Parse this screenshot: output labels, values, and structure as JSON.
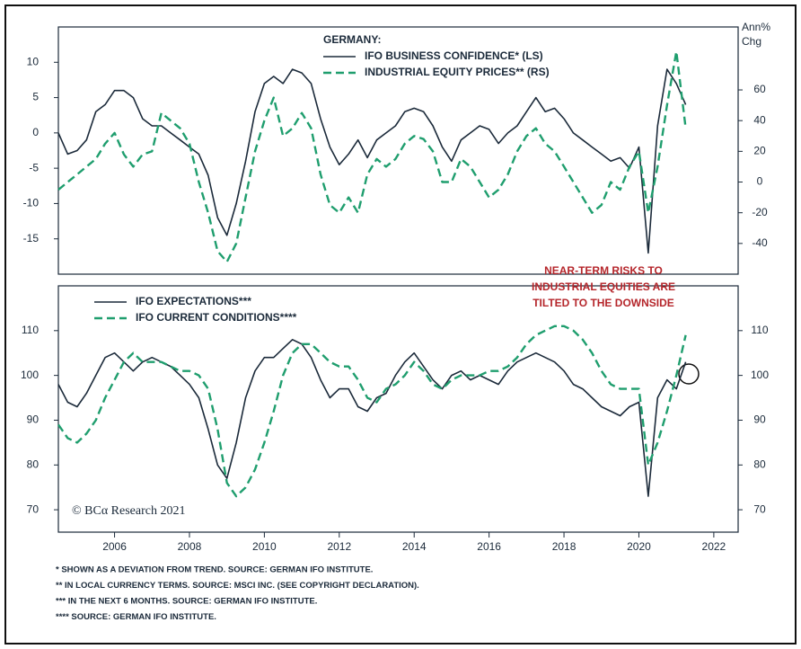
{
  "chart_data": [
    {
      "type": "line",
      "legend_title": "GERMANY:",
      "y2label": [
        "Ann%",
        "Chg"
      ],
      "xlim": [
        2004.5,
        2022.65
      ],
      "ylim": [
        -20,
        15
      ],
      "yticks": [
        -15,
        -10,
        -5,
        0,
        5,
        10
      ],
      "y2lim": [
        -60,
        101
      ],
      "y2ticks": [
        -40,
        -20,
        0,
        20,
        40,
        60
      ],
      "x": [
        2004.5,
        2004.75,
        2005,
        2005.25,
        2005.5,
        2005.75,
        2006,
        2006.25,
        2006.5,
        2006.75,
        2007,
        2007.25,
        2007.5,
        2007.75,
        2008,
        2008.25,
        2008.5,
        2008.75,
        2009,
        2009.25,
        2009.5,
        2009.75,
        2010,
        2010.25,
        2010.5,
        2010.75,
        2011,
        2011.25,
        2011.5,
        2011.75,
        2012,
        2012.25,
        2012.5,
        2012.75,
        2013,
        2013.25,
        2013.5,
        2013.75,
        2014,
        2014.25,
        2014.5,
        2014.75,
        2015,
        2015.25,
        2015.5,
        2015.75,
        2016,
        2016.25,
        2016.5,
        2016.75,
        2017,
        2017.25,
        2017.5,
        2017.75,
        2018,
        2018.25,
        2018.5,
        2018.75,
        2019,
        2019.25,
        2019.5,
        2019.75,
        2020,
        2020.25,
        2020.5,
        2020.75,
        2021,
        2021.25
      ],
      "series": [
        {
          "name": "IFO BUSINESS CONFIDENCE* (LS)",
          "color": "#1b2a3a",
          "dash": false,
          "axis": "y",
          "values": [
            0,
            -3,
            -2.5,
            -1,
            3,
            4,
            6,
            6,
            5,
            2,
            1,
            1,
            0,
            -1,
            -2,
            -3,
            -6,
            -12,
            -14.5,
            -10,
            -4,
            3,
            7,
            8,
            7,
            9,
            8.5,
            7,
            2,
            -2,
            -4.5,
            -3,
            -1,
            -3.5,
            -1,
            0,
            1,
            3,
            3.5,
            3,
            1,
            -2,
            -4,
            -1,
            0,
            1,
            0.5,
            -1.5,
            0,
            1,
            3,
            5,
            3,
            3.5,
            2,
            0,
            -1,
            -2,
            -3,
            -4,
            -3.5,
            -5,
            -2,
            -17,
            1,
            9,
            7,
            4
          ]
        },
        {
          "name": "INDUSTRIAL EQUITY PRICES** (RS)",
          "color": "#1f9e6e",
          "dash": true,
          "axis": "y2",
          "values": [
            -5,
            0,
            5,
            10,
            15,
            25,
            32,
            18,
            10,
            18,
            20,
            45,
            40,
            35,
            25,
            0,
            -20,
            -45,
            -52,
            -40,
            -10,
            20,
            40,
            55,
            30,
            35,
            45,
            35,
            5,
            -15,
            -20,
            -10,
            -20,
            5,
            15,
            10,
            15,
            25,
            30,
            28,
            20,
            0,
            0,
            15,
            10,
            0,
            -10,
            -5,
            5,
            20,
            30,
            35,
            25,
            20,
            10,
            0,
            -10,
            -20,
            -15,
            0,
            -5,
            10,
            20,
            -20,
            10,
            50,
            85,
            35
          ]
        }
      ]
    },
    {
      "type": "line",
      "annotation": [
        "NEAR-TERM RISKS TO",
        "INDUSTRIAL EQUITIES ARE",
        "TILTED TO THE DOWNSIDE"
      ],
      "annotation_color": "#b5262b",
      "source": "© BCα Research 2021",
      "xlim": [
        2004.5,
        2022.65
      ],
      "xticks": [
        2006,
        2008,
        2010,
        2012,
        2014,
        2016,
        2018,
        2020,
        2022
      ],
      "ylim": [
        65,
        120
      ],
      "yticks": [
        70,
        80,
        90,
        100,
        110
      ],
      "y2lim": [
        65,
        120
      ],
      "y2ticks": [
        70,
        80,
        90,
        100,
        110
      ],
      "x": [
        2004.5,
        2004.75,
        2005,
        2005.25,
        2005.5,
        2005.75,
        2006,
        2006.25,
        2006.5,
        2006.75,
        2007,
        2007.25,
        2007.5,
        2007.75,
        2008,
        2008.25,
        2008.5,
        2008.75,
        2009,
        2009.25,
        2009.5,
        2009.75,
        2010,
        2010.25,
        2010.5,
        2010.75,
        2011,
        2011.25,
        2011.5,
        2011.75,
        2012,
        2012.25,
        2012.5,
        2012.75,
        2013,
        2013.25,
        2013.5,
        2013.75,
        2014,
        2014.25,
        2014.5,
        2014.75,
        2015,
        2015.25,
        2015.5,
        2015.75,
        2016,
        2016.25,
        2016.5,
        2016.75,
        2017,
        2017.25,
        2017.5,
        2017.75,
        2018,
        2018.25,
        2018.5,
        2018.75,
        2019,
        2019.25,
        2019.5,
        2019.75,
        2020,
        2020.25,
        2020.5,
        2020.75,
        2021,
        2021.25
      ],
      "series": [
        {
          "name": "IFO EXPECTATIONS***",
          "color": "#1b2a3a",
          "dash": false,
          "axis": "y",
          "values": [
            98,
            94,
            93,
            96,
            100,
            104,
            105,
            103,
            101,
            103,
            104,
            103,
            102,
            100,
            98,
            95,
            88,
            80,
            77,
            85,
            95,
            101,
            104,
            104,
            106,
            108,
            107,
            104,
            99,
            95,
            97,
            97,
            93,
            92,
            95,
            96,
            100,
            103,
            105,
            102,
            99,
            97,
            100,
            101,
            99,
            100,
            99,
            98,
            101,
            103,
            104,
            105,
            104,
            103,
            101,
            98,
            97,
            95,
            93,
            92,
            91,
            93,
            94,
            73,
            95,
            99,
            97,
            103
          ]
        },
        {
          "name": "IFO CURRENT CONDITIONS****",
          "color": "#1f9e6e",
          "dash": true,
          "axis": "y",
          "values": [
            89,
            86,
            85,
            87,
            90,
            95,
            99,
            103,
            105,
            103,
            103,
            103,
            102,
            101,
            101,
            100,
            97,
            88,
            76,
            73,
            75,
            79,
            85,
            92,
            100,
            105,
            107,
            107,
            105,
            103,
            102,
            102,
            99,
            95,
            94,
            97,
            98,
            100,
            103,
            101,
            98,
            97,
            99,
            100,
            100,
            100,
            101,
            101,
            102,
            104,
            107,
            109,
            110,
            111,
            111,
            110,
            108,
            105,
            101,
            98,
            97,
            97,
            97,
            80,
            85,
            92,
            100,
            109
          ]
        }
      ]
    }
  ],
  "footnotes": [
    "*  SHOWN AS A DEVIATION FROM TREND. SOURCE: GERMAN IFO INSTITUTE.",
    "**  IN LOCAL CURRENCY TERMS. SOURCE: MSCI INC. (SEE COPYRIGHT DECLARATION).",
    "***  IN THE NEXT 6 MONTHS. SOURCE: GERMAN IFO INSTITUTE.",
    "****  SOURCE: GERMAN IFO INSTITUTE."
  ]
}
